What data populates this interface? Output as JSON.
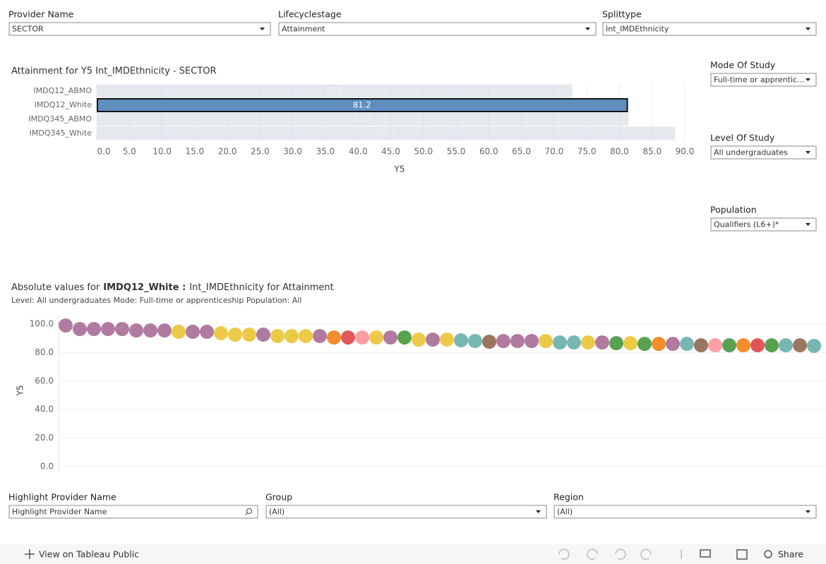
{
  "filters": [
    {
      "label": "Provider Name",
      "value": "SECTOR"
    },
    {
      "label": "Lifecyclestage",
      "value": "Attainment"
    },
    {
      "label": "Splittype",
      "value": "Int_IMDEthnicity"
    },
    {
      "label": "Mode Of Study",
      "value": "Full-time or apprentic…"
    },
    {
      "label": "Level Of Study",
      "value": "All undergraduates"
    },
    {
      "label": "Population",
      "value": "Qualifiers (L6+)*"
    },
    {
      "label": "Highlight Provider Name",
      "value": "Highlight Provider Name"
    },
    {
      "label": "Group",
      "value": "(All)"
    },
    {
      "label": "Region",
      "value": "(All)"
    }
  ],
  "chart_data": [
    {
      "type": "bar",
      "orientation": "horizontal",
      "title": "Attainment for Y5 Int_IMDEthnicity - SECTOR",
      "categories": [
        "IMDQ12_ABMO",
        "IMDQ12_White",
        "IMDQ345_ABMO",
        "IMDQ345_White"
      ],
      "values": [
        72.8,
        81.2,
        81.4,
        88.5
      ],
      "color": "#d3dae3",
      "selected": 1,
      "selected_color": "#5f8fbf",
      "xlim": [
        0,
        90
      ],
      "xticks": [
        {
          "value": 0,
          "label": "0.0"
        },
        {
          "value": 5,
          "label": "5.0"
        },
        {
          "value": 10,
          "label": "10.0"
        },
        {
          "value": 15,
          "label": "15.0"
        },
        {
          "value": 20,
          "label": "20.0"
        },
        {
          "value": 25,
          "label": "25.0"
        },
        {
          "value": 30,
          "label": "30.0"
        },
        {
          "value": 35,
          "label": "35.0"
        },
        {
          "value": 40,
          "label": "40.0"
        },
        {
          "value": 45,
          "label": "45.0"
        },
        {
          "value": 50,
          "label": "50.0"
        },
        {
          "value": 55,
          "label": "55.0"
        },
        {
          "value": 60,
          "label": "60.0"
        },
        {
          "value": 65,
          "label": "65.0"
        },
        {
          "value": 70,
          "label": "70.0"
        },
        {
          "value": 75,
          "label": "75.0"
        },
        {
          "value": 80,
          "label": "80.0"
        },
        {
          "value": 85,
          "label": "85.0"
        },
        {
          "value": 90,
          "label": "90.0"
        }
      ],
      "xlabel": "Y5",
      "grid": true
    },
    {
      "type": "dot",
      "title_prefix": "Absolute values for",
      "title_highlight": "IMDQ12_White :",
      "title_suffix": "Int_IMDEthnicity for Attainment",
      "subtitle": "Level: All undergraduates Mode: Full-time or apprenticeship Population: All",
      "categories": [
        null,
        null,
        null,
        null,
        null,
        null,
        null,
        null,
        null,
        null,
        null,
        null,
        null,
        null,
        null,
        null,
        null,
        null,
        null,
        null,
        null,
        null,
        null,
        null,
        null,
        null,
        null,
        null,
        null,
        null,
        null,
        null,
        null,
        null,
        null,
        null,
        null,
        null,
        null,
        null,
        null,
        null,
        null,
        null,
        null,
        null,
        null,
        null,
        null,
        null,
        null,
        null,
        null,
        null
      ],
      "values": [
        99.0,
        96.5,
        96.5,
        96.5,
        96.5,
        95.5,
        95.5,
        95.5,
        94.6,
        94.6,
        94.6,
        93.6,
        92.6,
        92.6,
        92.6,
        91.6,
        91.6,
        91.6,
        91.6,
        90.6,
        90.6,
        90.6,
        90.6,
        90.6,
        90.6,
        89.1,
        89.1,
        89.1,
        88.6,
        88.1,
        87.6,
        88.1,
        88.1,
        88.1,
        88.1,
        87.1,
        87.1,
        87.1,
        87.1,
        86.6,
        86.6,
        86.1,
        86.1,
        86.1,
        86.1,
        85.1,
        85.1,
        85.1,
        85.1,
        85.1,
        85.1,
        85.1,
        85.1,
        84.7
      ],
      "colors": [
        "#b07aa1",
        "#b07aa1",
        "#b07aa1",
        "#b07aa1",
        "#b07aa1",
        "#b07aa1",
        "#b07aa1",
        "#b07aa1",
        "#edc948",
        "#b07aa1",
        "#b07aa1",
        "#edc948",
        "#edc948",
        "#edc948",
        "#b07aa1",
        "#edc948",
        "#edc948",
        "#edc948",
        "#b07aa1",
        "#f28e2b",
        "#e15759",
        "#ff9da7",
        "#edc948",
        "#b07aa1",
        "#59a14f",
        "#edc948",
        "#b07aa1",
        "#edc948",
        "#76b7b2",
        "#76b7b2",
        "#9c755f",
        "#b07aa1",
        "#b07aa1",
        "#b07aa1",
        "#edc948",
        "#76b7b2",
        "#76b7b2",
        "#edc948",
        "#b07aa1",
        "#59a14f",
        "#edc948",
        "#59a14f",
        "#f28e2b",
        "#b07aa1",
        "#76b7b2",
        "#9c755f",
        "#ff9da7",
        "#59a14f",
        "#f28e2b",
        "#e15759",
        "#59a14f",
        "#76b7b2",
        "#9c755f",
        "#76b7b2"
      ],
      "ylim": [
        0,
        105
      ],
      "yticks": [
        {
          "value": 0,
          "label": "0.0"
        },
        {
          "value": 20,
          "label": "20.0"
        },
        {
          "value": 40,
          "label": "40.0"
        },
        {
          "value": 60,
          "label": "60.0"
        },
        {
          "value": 80,
          "label": "80.0"
        },
        {
          "value": 100,
          "label": "100.0"
        }
      ],
      "ylabel": "Y5",
      "grid": true
    }
  ],
  "toolbar": {
    "view": "View on Tableau Public",
    "share": "Share"
  }
}
